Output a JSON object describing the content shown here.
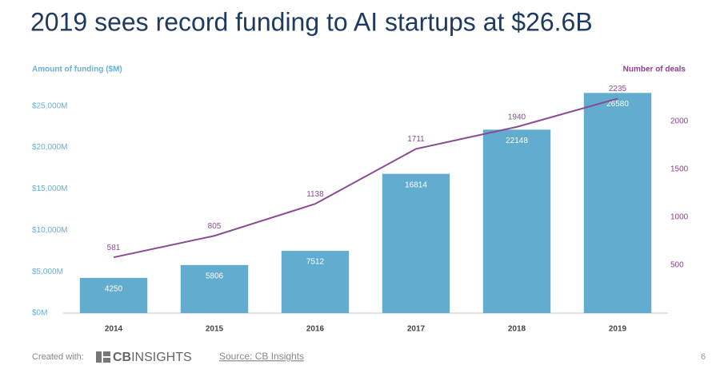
{
  "chart_data": {
    "type": "bar",
    "title": "2019 sees record funding to AI startups at $26.6B",
    "ylabel": "Amount of funding ($M)",
    "y2label": "Number of deals",
    "categories": [
      "2014",
      "2015",
      "2016",
      "2017",
      "2018",
      "2019"
    ],
    "series": [
      {
        "type": "bar",
        "color": "#62acd0",
        "values": [
          4250,
          5806,
          7512,
          16814,
          22148,
          26580
        ]
      },
      {
        "type": "line",
        "axis": "y2",
        "color": "#8a4a94",
        "values": [
          581,
          805,
          1138,
          1711,
          1940,
          2235
        ]
      }
    ],
    "ylim": [
      0,
      27000
    ],
    "yticks": [
      {
        "value": 0,
        "label": "$0M"
      },
      {
        "value": 5000,
        "label": "$5,000M"
      },
      {
        "value": 10000,
        "label": "$10,000M"
      },
      {
        "value": 15000,
        "label": "$15,000M"
      },
      {
        "value": 20000,
        "label": "$20,000M"
      },
      {
        "value": 25000,
        "label": "$25,000M"
      }
    ],
    "y2lim": [
      0,
      2330
    ],
    "y2ticks": [
      500,
      1000,
      1500,
      2000
    ],
    "grid": false
  },
  "footer": {
    "created_with": "Created with:",
    "logo_bold": "CB",
    "logo_text": "INSIGHTS",
    "source": "Source: CB Insights",
    "page": "6"
  }
}
